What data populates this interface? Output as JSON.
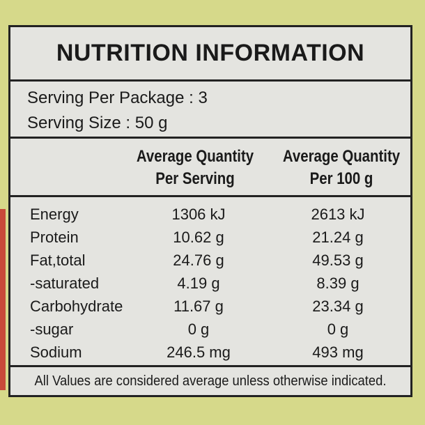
{
  "title": "NUTRITION INFORMATION",
  "serving": [
    "Serving Per Package : 3",
    "Serving Size : 50 g"
  ],
  "header": [
    [
      "Average Quantity",
      "Per Serving"
    ],
    [
      "Average Quantity",
      "Per 100 g"
    ]
  ],
  "table": {
    "rows": [
      [
        "Energy",
        "1306 kJ",
        "2613 kJ"
      ],
      [
        "Protein",
        "10.62 g",
        "21.24 g"
      ],
      [
        "Fat,total",
        "24.76 g",
        "49.53 g"
      ],
      [
        "-saturated",
        "4.19 g",
        "8.39 g"
      ],
      [
        "Carbohydrate",
        "11.67 g",
        "23.34 g"
      ],
      [
        "-sugar",
        "0 g",
        "0 g"
      ],
      [
        "Sodium",
        "246.5 mg",
        "493 mg"
      ]
    ]
  },
  "footer": "All Values are considered average unless otherwise indicated."
}
